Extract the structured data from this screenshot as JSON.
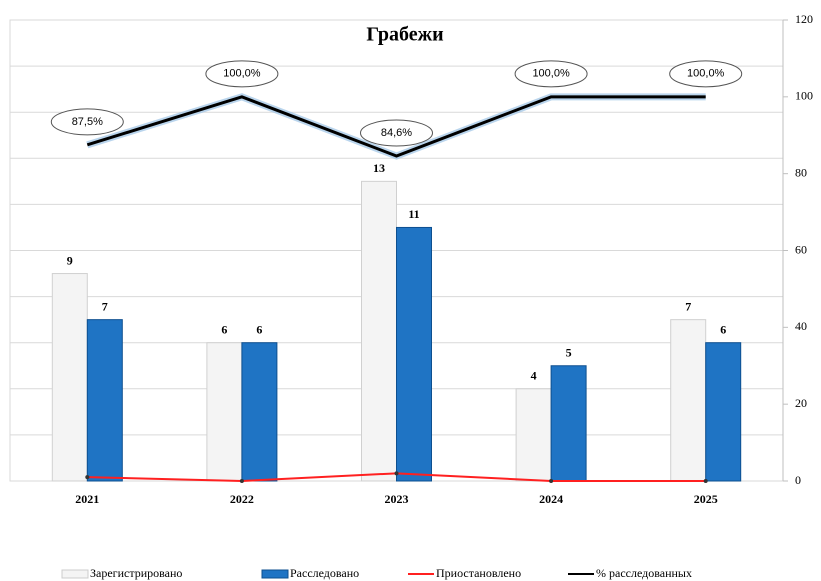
{
  "chart_data": {
    "type": "bar",
    "title": "Грабежи",
    "categories": [
      "2021",
      "2022",
      "2023",
      "2024",
      "2025"
    ],
    "ylim": [
      0,
      20
    ],
    "yticks": [
      0,
      2,
      4,
      6,
      8,
      10,
      12,
      14,
      16,
      18,
      20
    ],
    "grid": true,
    "y2lim": [
      0,
      120
    ],
    "y2ticks": [
      0,
      20,
      40,
      60,
      80,
      100,
      120
    ],
    "legend": "bottom",
    "series": [
      {
        "name": "Зарегистрировано",
        "type": "bar",
        "color": "#f4f4f4",
        "values": [
          9,
          6,
          13,
          4,
          7
        ]
      },
      {
        "name": "Расследовано",
        "type": "bar",
        "color": "#1f74c4",
        "values": [
          7,
          6,
          11,
          5,
          6
        ]
      },
      {
        "name": "Приостановлено",
        "type": "line",
        "axis": "y2",
        "color": "#ff2020",
        "values": [
          1,
          0,
          2,
          0,
          0
        ]
      },
      {
        "name": "% расследованных",
        "type": "line",
        "axis": "y2",
        "color": "#000000",
        "values": [
          87.5,
          100,
          84.6,
          100,
          100
        ],
        "value_labels": [
          "87,5%",
          "100,0%",
          "84,6%",
          "100,0%",
          "100,0%"
        ]
      }
    ]
  }
}
